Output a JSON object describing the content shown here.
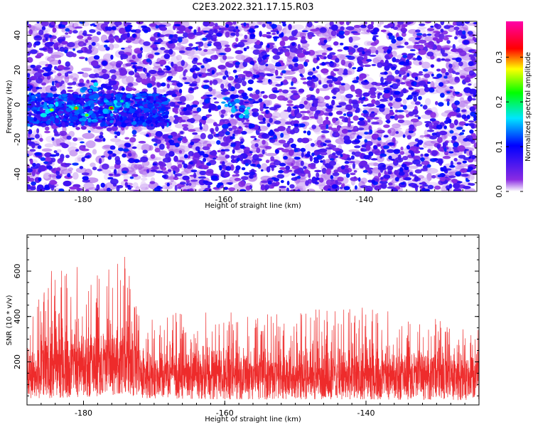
{
  "title": "C2E3.2022.321.17.15.R03",
  "chart_data": [
    {
      "type": "heatmap",
      "xlabel": "Height of straight line (km)",
      "ylabel": "Frequency (Hz)",
      "xlim": [
        -188,
        -124
      ],
      "ylim": [
        -50,
        48
      ],
      "xticks": [
        "-180",
        "-160",
        "-140"
      ],
      "yticks": [
        "-40",
        "-20",
        "0",
        "20",
        "40"
      ],
      "colorbar": {
        "label": "Normalized spectral amplitude",
        "range": [
          0,
          0.38
        ],
        "ticks": [
          "0.0",
          "0.1",
          "0.2",
          "0.3"
        ],
        "colors": [
          "#ffffff",
          "#8a2be2",
          "#0000ff",
          "#00e5ff",
          "#00ff00",
          "#ffff00",
          "#ff0000",
          "#ff00aa"
        ]
      },
      "hotspots": [
        {
          "x": -184.5,
          "y": -3,
          "v": 0.26
        },
        {
          "x": -181,
          "y": -2,
          "v": 0.3
        },
        {
          "x": -179.5,
          "y": -6,
          "v": 0.24
        },
        {
          "x": -176,
          "y": -2,
          "v": 0.33
        },
        {
          "x": -174.5,
          "y": 2,
          "v": 0.18
        },
        {
          "x": -179,
          "y": 8,
          "v": 0.14
        },
        {
          "x": -159,
          "y": 0,
          "v": 0.16
        },
        {
          "x": -157.5,
          "y": -3,
          "v": 0.12
        }
      ],
      "band": {
        "y_center": -3,
        "y_halfwidth": 9,
        "x_end": -168
      }
    },
    {
      "type": "line",
      "xlabel": "Height of straight line (km)",
      "ylabel": "SNR (10 * v/v)",
      "xlim": [
        -188,
        -124
      ],
      "ylim": [
        10,
        760
      ],
      "xticks": [
        "-180",
        "-160",
        "-140"
      ],
      "yticks": [
        "200",
        "400",
        "600"
      ],
      "color": "#ee2b2b",
      "baseline_mean": 140,
      "noise_envelope": [
        {
          "x": -188,
          "low": 40,
          "high": 330
        },
        {
          "x": -185,
          "low": 40,
          "high": 600
        },
        {
          "x": -181,
          "low": 45,
          "high": 620
        },
        {
          "x": -177,
          "low": 50,
          "high": 640
        },
        {
          "x": -175,
          "low": 60,
          "high": 760
        },
        {
          "x": -172,
          "low": 40,
          "high": 420
        },
        {
          "x": -160,
          "low": 35,
          "high": 420
        },
        {
          "x": -140,
          "low": 35,
          "high": 440
        },
        {
          "x": -124,
          "low": 30,
          "high": 360
        }
      ]
    }
  ]
}
